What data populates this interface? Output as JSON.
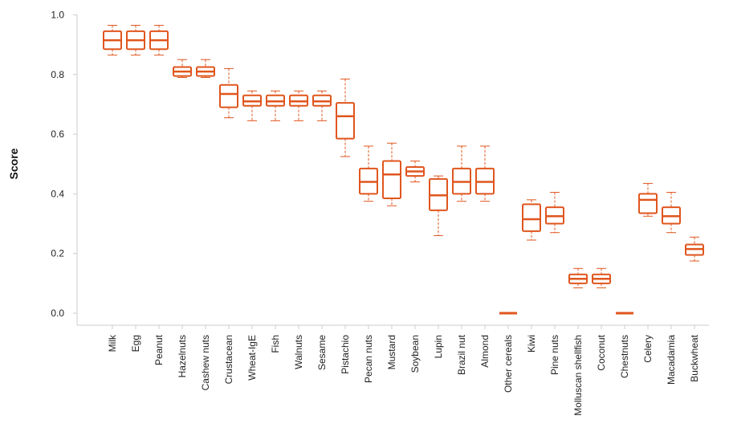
{
  "chart_data": {
    "type": "boxplot",
    "title": "",
    "xlabel": "",
    "ylabel": "Score",
    "ylim": [
      0,
      1.0
    ],
    "yticks": [
      "0.0",
      "0.2",
      "0.4",
      "0.6",
      "0.8",
      "1.0"
    ],
    "grid": false,
    "color": "#e0561e",
    "categories": [
      "Milk",
      "Egg",
      "Peanut",
      "Hazelnuts",
      "Cashew nuts",
      "Crustacean",
      "Wheat-IgE",
      "Fish",
      "Walnuts",
      "Sesame",
      "Pistachio",
      "Pecan nuts",
      "Mustard",
      "Soybean",
      "Lupin",
      "Brazil nut",
      "Almond",
      "Other cereals",
      "Kiwi",
      "Pine nuts",
      "Molluscan shellfish",
      "Coconut",
      "Chestnuts",
      "Celery",
      "Macadamia",
      "Buckwheat"
    ],
    "boxes": [
      {
        "min": 0.865,
        "q1": 0.885,
        "median": 0.915,
        "q3": 0.945,
        "max": 0.965
      },
      {
        "min": 0.865,
        "q1": 0.885,
        "median": 0.915,
        "q3": 0.945,
        "max": 0.965
      },
      {
        "min": 0.865,
        "q1": 0.885,
        "median": 0.915,
        "q3": 0.945,
        "max": 0.965
      },
      {
        "min": 0.79,
        "q1": 0.795,
        "median": 0.81,
        "q3": 0.825,
        "max": 0.85
      },
      {
        "min": 0.79,
        "q1": 0.795,
        "median": 0.81,
        "q3": 0.825,
        "max": 0.85
      },
      {
        "min": 0.655,
        "q1": 0.69,
        "median": 0.735,
        "q3": 0.765,
        "max": 0.82
      },
      {
        "min": 0.645,
        "q1": 0.695,
        "median": 0.71,
        "q3": 0.73,
        "max": 0.745
      },
      {
        "min": 0.645,
        "q1": 0.695,
        "median": 0.71,
        "q3": 0.73,
        "max": 0.745
      },
      {
        "min": 0.645,
        "q1": 0.695,
        "median": 0.71,
        "q3": 0.73,
        "max": 0.745
      },
      {
        "min": 0.645,
        "q1": 0.695,
        "median": 0.71,
        "q3": 0.73,
        "max": 0.745
      },
      {
        "min": 0.525,
        "q1": 0.585,
        "median": 0.66,
        "q3": 0.705,
        "max": 0.785
      },
      {
        "min": 0.375,
        "q1": 0.4,
        "median": 0.44,
        "q3": 0.485,
        "max": 0.56
      },
      {
        "min": 0.36,
        "q1": 0.385,
        "median": 0.465,
        "q3": 0.51,
        "max": 0.57
      },
      {
        "min": 0.44,
        "q1": 0.46,
        "median": 0.475,
        "q3": 0.49,
        "max": 0.51
      },
      {
        "min": 0.26,
        "q1": 0.345,
        "median": 0.395,
        "q3": 0.45,
        "max": 0.46
      },
      {
        "min": 0.375,
        "q1": 0.4,
        "median": 0.44,
        "q3": 0.485,
        "max": 0.56
      },
      {
        "min": 0.375,
        "q1": 0.4,
        "median": 0.44,
        "q3": 0.485,
        "max": 0.56
      },
      {
        "min": 0.0,
        "q1": 0.0,
        "median": 0.0,
        "q3": 0.0,
        "max": 0.0
      },
      {
        "min": 0.245,
        "q1": 0.275,
        "median": 0.315,
        "q3": 0.365,
        "max": 0.38
      },
      {
        "min": 0.27,
        "q1": 0.3,
        "median": 0.325,
        "q3": 0.355,
        "max": 0.405
      },
      {
        "min": 0.085,
        "q1": 0.1,
        "median": 0.115,
        "q3": 0.13,
        "max": 0.15
      },
      {
        "min": 0.085,
        "q1": 0.1,
        "median": 0.115,
        "q3": 0.13,
        "max": 0.15
      },
      {
        "min": 0.0,
        "q1": 0.0,
        "median": 0.0,
        "q3": 0.0,
        "max": 0.0
      },
      {
        "min": 0.325,
        "q1": 0.335,
        "median": 0.38,
        "q3": 0.4,
        "max": 0.435
      },
      {
        "min": 0.27,
        "q1": 0.3,
        "median": 0.325,
        "q3": 0.355,
        "max": 0.405
      },
      {
        "min": 0.175,
        "q1": 0.195,
        "median": 0.215,
        "q3": 0.23,
        "max": 0.255
      }
    ]
  }
}
